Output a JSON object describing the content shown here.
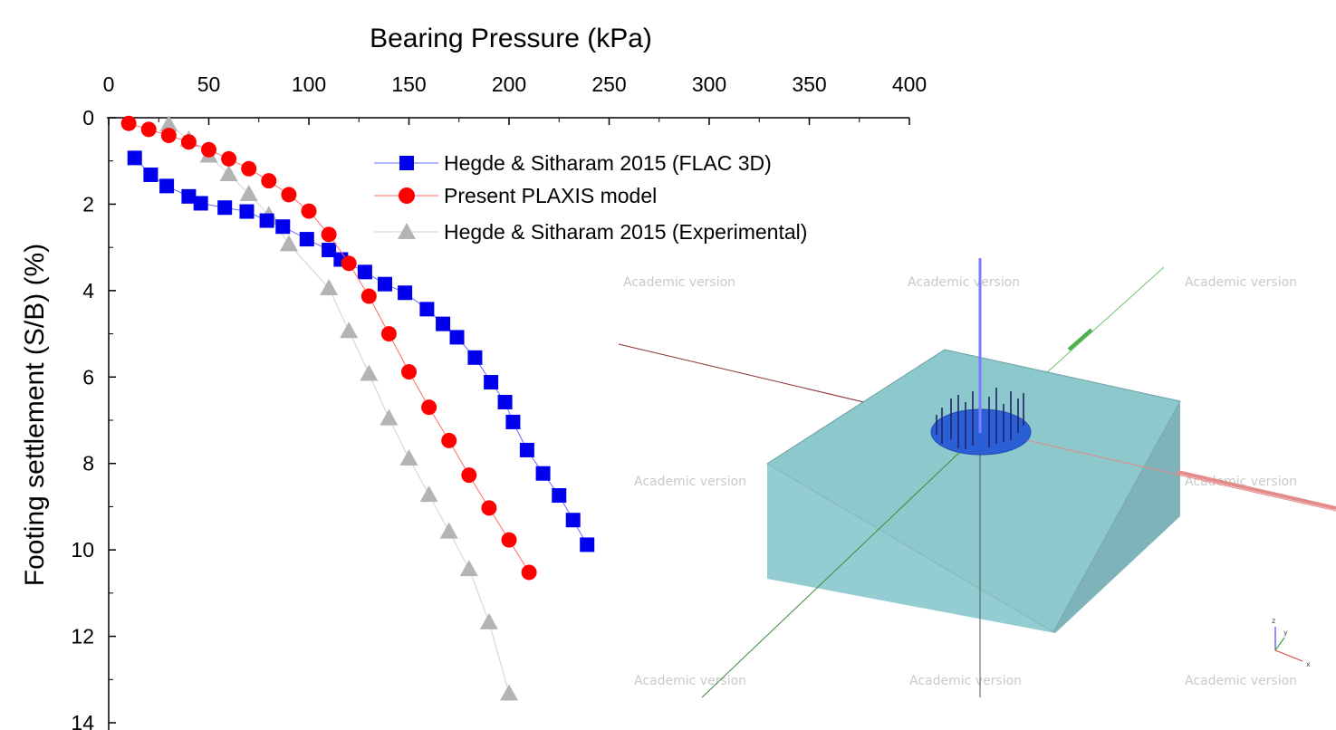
{
  "chart_data": {
    "type": "scatter",
    "xlabel": "Bearing Pressure (kPa)",
    "ylabel": "Footing settlement (S/B) (%)",
    "xlim": [
      0,
      400
    ],
    "ylim": [
      0,
      14
    ],
    "x_axis_position": "top",
    "y_axis_inverted": true,
    "x_ticks": [
      "0",
      "50",
      "100",
      "150",
      "200",
      "250",
      "300",
      "350",
      "400"
    ],
    "y_ticks": [
      "0",
      "2",
      "4",
      "6",
      "8",
      "10",
      "12",
      "14"
    ],
    "grid": false,
    "legend_position": "top-center",
    "series": [
      {
        "name": "Hegde & Sitharam 2015 (FLAC 3D)",
        "marker": "square",
        "color": "#0000ee",
        "line_color": "#6a6af5",
        "x": [
          13,
          21,
          29,
          40,
          46,
          58,
          69,
          79,
          87,
          99,
          110,
          116,
          128,
          138,
          148,
          159,
          167,
          174,
          183,
          191,
          198,
          202,
          209,
          217,
          225,
          232,
          239
        ],
        "y": [
          0.93,
          1.32,
          1.58,
          1.82,
          1.98,
          2.08,
          2.17,
          2.38,
          2.52,
          2.81,
          3.06,
          3.28,
          3.57,
          3.85,
          4.05,
          4.43,
          4.77,
          5.08,
          5.55,
          6.12,
          6.58,
          7.04,
          7.69,
          8.23,
          8.74,
          9.31,
          9.88
        ]
      },
      {
        "name": "Present PLAXIS model",
        "marker": "circle",
        "color": "#ff0000",
        "line_color": "#ff6a6a",
        "x": [
          10,
          20,
          30,
          40,
          50,
          60,
          70,
          80,
          90,
          100,
          110,
          120,
          130,
          140,
          150,
          160,
          170,
          180,
          190,
          200,
          210
        ],
        "y": [
          0.13,
          0.27,
          0.41,
          0.56,
          0.74,
          0.95,
          1.18,
          1.46,
          1.78,
          2.16,
          2.7,
          3.37,
          4.13,
          5.0,
          5.88,
          6.7,
          7.47,
          8.27,
          9.03,
          9.77,
          10.52
        ]
      },
      {
        "name": "Hegde & Sitharam 2015 (Experimental)",
        "marker": "triangle",
        "color": "#b4b4b4",
        "line_color": "#d2d2d2",
        "x": [
          30,
          40,
          50,
          60,
          70,
          80,
          90,
          110,
          120,
          130,
          140,
          150,
          160,
          170,
          180,
          190,
          200
        ],
        "y": [
          0.15,
          0.5,
          0.87,
          1.3,
          1.76,
          2.25,
          2.92,
          3.94,
          4.93,
          5.92,
          6.95,
          7.88,
          8.72,
          9.57,
          10.44,
          11.67,
          13.32
        ]
      }
    ]
  },
  "inset": {
    "watermark_text": "Academic version",
    "triad_labels": [
      "z",
      "y",
      "x"
    ],
    "block_color": "#8fcad0",
    "footing_color": "#2a5fd6"
  }
}
